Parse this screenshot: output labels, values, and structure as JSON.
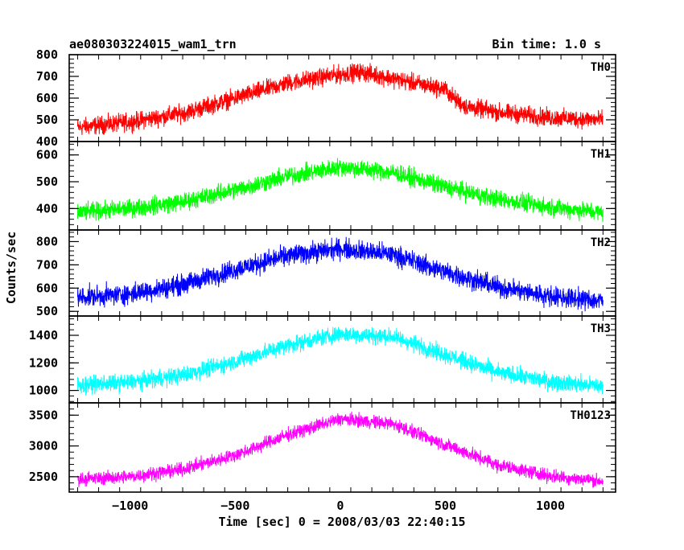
{
  "header": {
    "title": "ae080303224015_wam1_trn",
    "bin_time": "Bin time: 1.0 s"
  },
  "chart_data": {
    "type": "line",
    "title": "ae080303224015_wam1_trn",
    "subtitle": "Bin time: 1.0 s",
    "xlabel": "Time [sec] 0 = 2008/03/03 22:40:15",
    "ylabel": "Counts/sec",
    "xlim": [
      -1290,
      1310
    ],
    "x_ticks": [
      -1000,
      -500,
      0,
      500,
      1000
    ],
    "grid": false,
    "legend": "none",
    "panels": [
      {
        "name": "TH0",
        "color": "#ff0000",
        "ylim": [
          400,
          800
        ],
        "y_ticks": [
          400,
          500,
          600,
          700,
          800
        ],
        "data_x": [
          -1250,
          -1000,
          -750,
          -500,
          -250,
          0,
          100,
          250,
          500,
          550,
          600,
          750,
          1000,
          1250
        ],
        "data_y": [
          465,
          490,
          530,
          600,
          670,
          710,
          720,
          690,
          640,
          590,
          560,
          535,
          510,
          500
        ],
        "noise": 32
      },
      {
        "name": "TH1",
        "color": "#00ff00",
        "ylim": [
          320,
          650
        ],
        "y_ticks": [
          400,
          500,
          600
        ],
        "data_x": [
          -1250,
          -1000,
          -750,
          -500,
          -250,
          0,
          250,
          500,
          750,
          1000,
          1250
        ],
        "data_y": [
          385,
          400,
          425,
          470,
          520,
          555,
          535,
          480,
          435,
          405,
          385
        ],
        "noise": 26
      },
      {
        "name": "TH2",
        "color": "#0000ff",
        "ylim": [
          480,
          850
        ],
        "y_ticks": [
          500,
          600,
          700,
          800
        ],
        "data_x": [
          -1250,
          -1000,
          -750,
          -500,
          -250,
          0,
          250,
          500,
          750,
          1000,
          1250
        ],
        "data_y": [
          560,
          575,
          615,
          680,
          740,
          770,
          745,
          670,
          605,
          565,
          545
        ],
        "noise": 34
      },
      {
        "name": "TH3",
        "color": "#00ffff",
        "ylim": [
          910,
          1540
        ],
        "y_ticks": [
          1000,
          1200,
          1400
        ],
        "data_x": [
          -1250,
          -1000,
          -750,
          -500,
          -250,
          0,
          250,
          500,
          750,
          1000,
          1250
        ],
        "data_y": [
          1040,
          1060,
          1110,
          1210,
          1330,
          1410,
          1390,
          1260,
          1130,
          1065,
          1030
        ],
        "noise": 48
      },
      {
        "name": "TH0123",
        "color": "#ff00ff",
        "ylim": [
          2250,
          3700
        ],
        "y_ticks": [
          2500,
          3000,
          3500
        ],
        "data_x": [
          -1250,
          -1000,
          -750,
          -500,
          -250,
          0,
          250,
          500,
          750,
          1000,
          1250
        ],
        "data_y": [
          2460,
          2500,
          2620,
          2850,
          3180,
          3440,
          3360,
          3020,
          2690,
          2510,
          2430
        ],
        "noise": 85
      }
    ]
  }
}
